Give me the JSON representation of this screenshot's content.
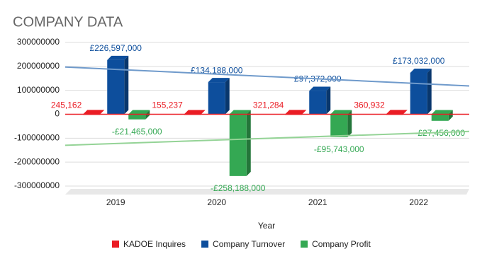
{
  "chart_data": {
    "type": "bar",
    "title": "COMPANY DATA",
    "x_label": "Year",
    "categories": [
      "2019",
      "2020",
      "2021",
      "2022"
    ],
    "series": [
      {
        "name": "KADOE Inquires",
        "color": "#ea1c24",
        "values": [
          245162,
          155237,
          321284,
          360932
        ],
        "value_labels": [
          "245,162",
          "155,237",
          "321,284",
          "360,932"
        ]
      },
      {
        "name": "Company Turnover",
        "color": "#0d4e9c",
        "trendline": "linear",
        "trend_color": "#6f9acb",
        "values": [
          226597000,
          134188000,
          97372000,
          173032000
        ],
        "value_labels": [
          "£226,597,000",
          "£134,188,000",
          "£97,372,000",
          "£173,032,000"
        ]
      },
      {
        "name": "Company Profit",
        "color": "#34a853",
        "trendline": "linear",
        "trend_color": "#94d396",
        "values": [
          -21465000,
          -258188000,
          -95743000,
          -27456000
        ],
        "value_labels": [
          "-£21,465,000",
          "-£258,188,000",
          "-£95,743,000",
          "-£27,456,000"
        ]
      }
    ],
    "ylim": [
      -300000000,
      300000000
    ],
    "yticks": [
      -300000000,
      -200000000,
      -100000000,
      0,
      100000000,
      200000000,
      300000000
    ],
    "grid": true,
    "legend": "bottom"
  }
}
